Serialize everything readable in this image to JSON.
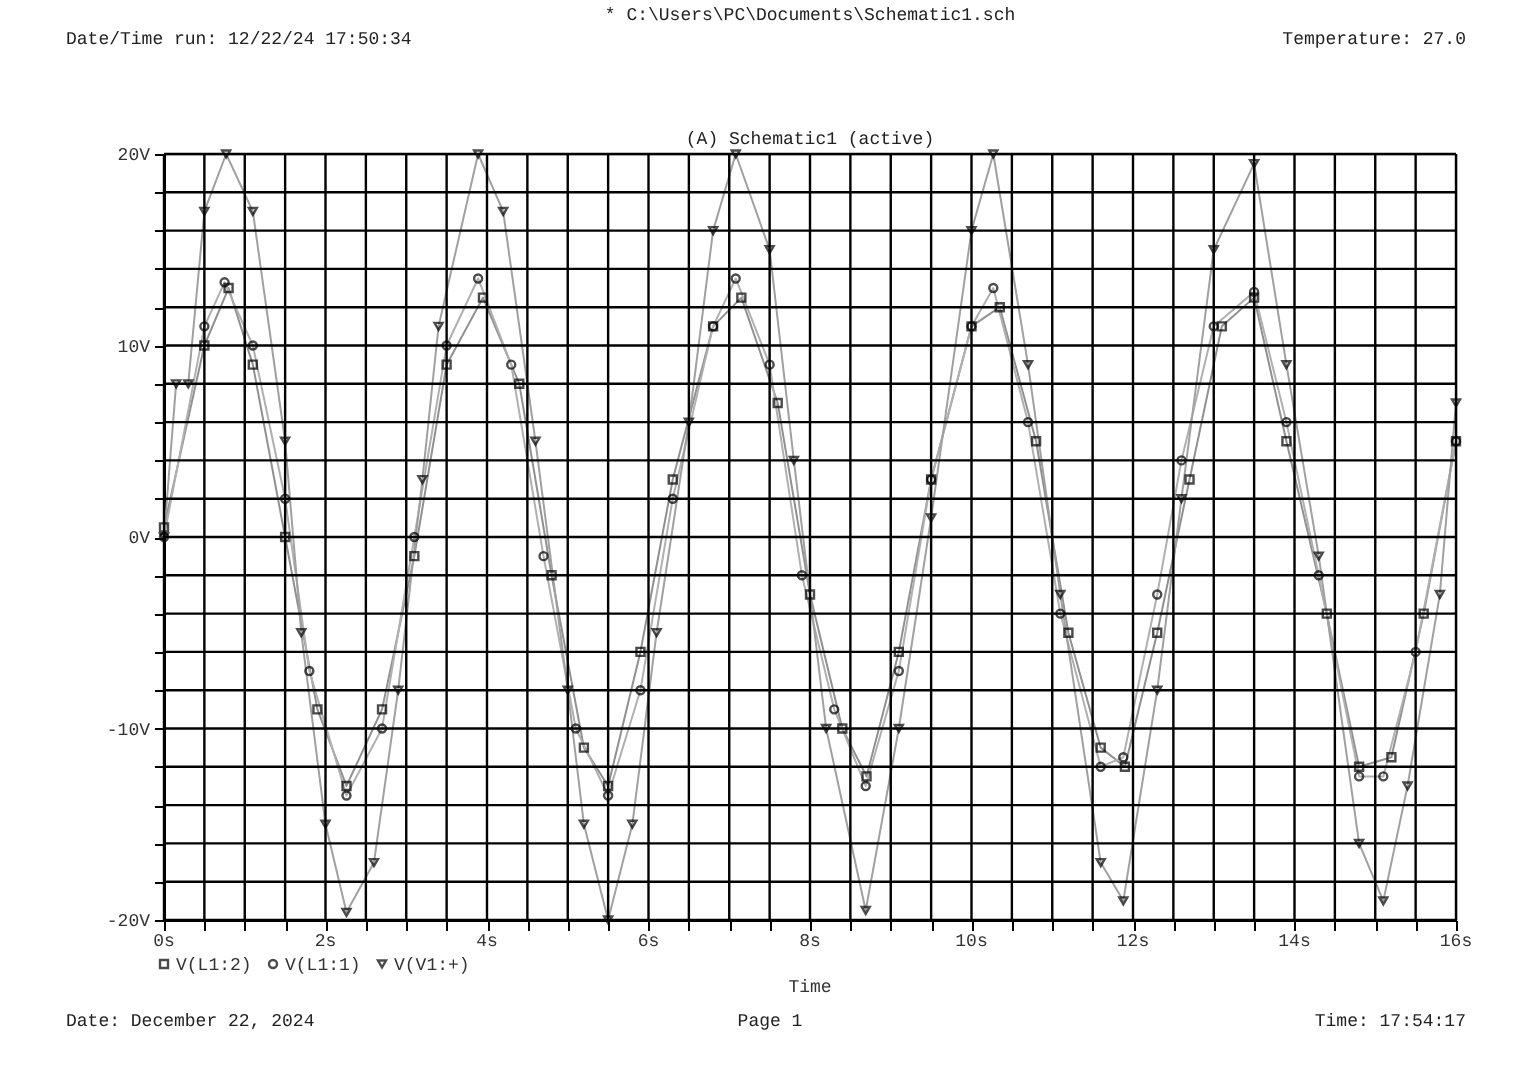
{
  "chart_data": {
    "type": "line",
    "title": "(A) Schematic1 (active)",
    "xlabel": "Time",
    "annotations": [
      "* C:\\Users\\PC\\Documents\\Schematic1.sch",
      "Date/Time run: 12/22/24 17:50:34",
      "Temperature: 27.0",
      "Date: December 22, 2024",
      "Page 1",
      "Time: 17:54:17"
    ],
    "xlim": [
      0,
      16
    ],
    "ylim": [
      -20,
      20
    ],
    "xticks": [
      {
        "value": 0,
        "label": "0s"
      },
      {
        "value": 0.5,
        "label": null
      },
      {
        "value": 1,
        "label": null
      },
      {
        "value": 1.5,
        "label": null
      },
      {
        "value": 2,
        "label": "2s"
      },
      {
        "value": 2.5,
        "label": null
      },
      {
        "value": 3,
        "label": null
      },
      {
        "value": 3.5,
        "label": null
      },
      {
        "value": 4,
        "label": "4s"
      },
      {
        "value": 4.5,
        "label": null
      },
      {
        "value": 5,
        "label": null
      },
      {
        "value": 5.5,
        "label": null
      },
      {
        "value": 6,
        "label": "6s"
      },
      {
        "value": 6.5,
        "label": null
      },
      {
        "value": 7,
        "label": null
      },
      {
        "value": 7.5,
        "label": null
      },
      {
        "value": 8,
        "label": "8s"
      },
      {
        "value": 8.5,
        "label": null
      },
      {
        "value": 9,
        "label": null
      },
      {
        "value": 9.5,
        "label": null
      },
      {
        "value": 10,
        "label": "10s"
      },
      {
        "value": 10.5,
        "label": null
      },
      {
        "value": 11,
        "label": null
      },
      {
        "value": 11.5,
        "label": null
      },
      {
        "value": 12,
        "label": "12s"
      },
      {
        "value": 12.5,
        "label": null
      },
      {
        "value": 13,
        "label": null
      },
      {
        "value": 13.5,
        "label": null
      },
      {
        "value": 14,
        "label": "14s"
      },
      {
        "value": 14.5,
        "label": null
      },
      {
        "value": 15,
        "label": null
      },
      {
        "value": 15.5,
        "label": null
      },
      {
        "value": 16,
        "label": "16s"
      }
    ],
    "yticks": [
      {
        "value": -20,
        "label": "-20V"
      },
      {
        "value": -18,
        "label": null
      },
      {
        "value": -16,
        "label": null
      },
      {
        "value": -14,
        "label": null
      },
      {
        "value": -12,
        "label": null
      },
      {
        "value": -10,
        "label": "-10V"
      },
      {
        "value": -8,
        "label": null
      },
      {
        "value": -6,
        "label": null
      },
      {
        "value": -4,
        "label": null
      },
      {
        "value": -2,
        "label": null
      },
      {
        "value": 0,
        "label": "0V"
      },
      {
        "value": 2,
        "label": null
      },
      {
        "value": 4,
        "label": null
      },
      {
        "value": 6,
        "label": null
      },
      {
        "value": 8,
        "label": null
      },
      {
        "value": 10,
        "label": "10V"
      },
      {
        "value": 12,
        "label": null
      },
      {
        "value": 14,
        "label": null
      },
      {
        "value": 16,
        "label": null
      },
      {
        "value": 18,
        "label": null
      },
      {
        "value": 20,
        "label": "20V"
      }
    ],
    "grid": true,
    "legend": "bottom left",
    "line_style": "solid",
    "series": [
      {
        "name": "V(L1:2)",
        "color": "#909090",
        "marker": "square",
        "x": [
          0,
          0.5,
          0.8,
          1.1,
          1.5,
          1.9,
          2.26,
          2.7,
          3.1,
          3.5,
          3.95,
          4.4,
          4.8,
          5.2,
          5.5,
          5.9,
          6.3,
          6.8,
          7.15,
          7.6,
          8.0,
          8.4,
          8.7,
          9.1,
          9.5,
          10.0,
          10.35,
          10.8,
          11.2,
          11.6,
          11.9,
          12.3,
          12.7,
          13.1,
          13.5,
          13.9,
          14.4,
          14.8,
          15.2,
          15.6,
          16.0
        ],
        "values": [
          0.5,
          10,
          13,
          9,
          0,
          -9,
          -13,
          -9,
          -1,
          9,
          12.5,
          8,
          -2,
          -11,
          -13,
          -6,
          3,
          11,
          12.5,
          7,
          -3,
          -10,
          -12.5,
          -6,
          3,
          11,
          12,
          5,
          -5,
          -11,
          -12,
          -5,
          3,
          11,
          12.5,
          5,
          -4,
          -12,
          -11.5,
          -4,
          5
        ]
      },
      {
        "name": "V(L1:1)",
        "color": "#b0b0b0",
        "marker": "circle",
        "x": [
          0,
          0.5,
          0.75,
          1.1,
          1.5,
          1.8,
          2.26,
          2.7,
          3.1,
          3.5,
          3.89,
          4.3,
          4.7,
          5.1,
          5.5,
          5.9,
          6.3,
          6.8,
          7.08,
          7.5,
          7.9,
          8.3,
          8.69,
          9.1,
          9.5,
          10.0,
          10.27,
          10.7,
          11.1,
          11.6,
          11.88,
          12.3,
          12.6,
          13.0,
          13.5,
          13.9,
          14.3,
          14.8,
          15.1,
          15.5,
          16.0
        ],
        "values": [
          0,
          11,
          13.3,
          10,
          2,
          -7,
          -13.5,
          -10,
          0,
          10,
          13.5,
          9,
          -1,
          -10,
          -13.5,
          -8,
          2,
          11,
          13.5,
          9,
          -2,
          -9,
          -13,
          -7,
          3,
          11,
          13,
          6,
          -4,
          -12,
          -11.5,
          -3,
          4,
          11,
          12.8,
          6,
          -2,
          -12.5,
          -12.5,
          -6,
          5
        ]
      },
      {
        "name": "V(V1:+)",
        "color": "#a0a0a0",
        "marker": "triangle",
        "x": [
          0,
          0.15,
          0.3,
          0.5,
          0.77,
          1.1,
          1.5,
          1.7,
          2.0,
          2.26,
          2.6,
          2.9,
          3.2,
          3.4,
          3.89,
          4.2,
          4.6,
          5.0,
          5.2,
          5.5,
          5.8,
          6.1,
          6.5,
          6.8,
          7.08,
          7.5,
          7.8,
          8.2,
          8.69,
          9.1,
          9.5,
          10.0,
          10.27,
          10.7,
          11.1,
          11.6,
          11.88,
          12.3,
          12.6,
          13.0,
          13.5,
          13.9,
          14.3,
          14.8,
          15.1,
          15.4,
          15.8,
          16.0
        ],
        "values": [
          0,
          8,
          8,
          17,
          20,
          17,
          5,
          -5,
          -15,
          -19.6,
          -17,
          -8,
          3,
          11,
          20,
          17,
          5,
          -8,
          -15,
          -20,
          -15,
          -5,
          6,
          16,
          20,
          15,
          4,
          -10,
          -19.5,
          -10,
          1,
          16,
          20,
          9,
          -3,
          -17,
          -19,
          -8,
          2,
          15,
          19.5,
          9,
          -1,
          -16,
          -19,
          -13,
          -3,
          7
        ]
      }
    ]
  }
}
